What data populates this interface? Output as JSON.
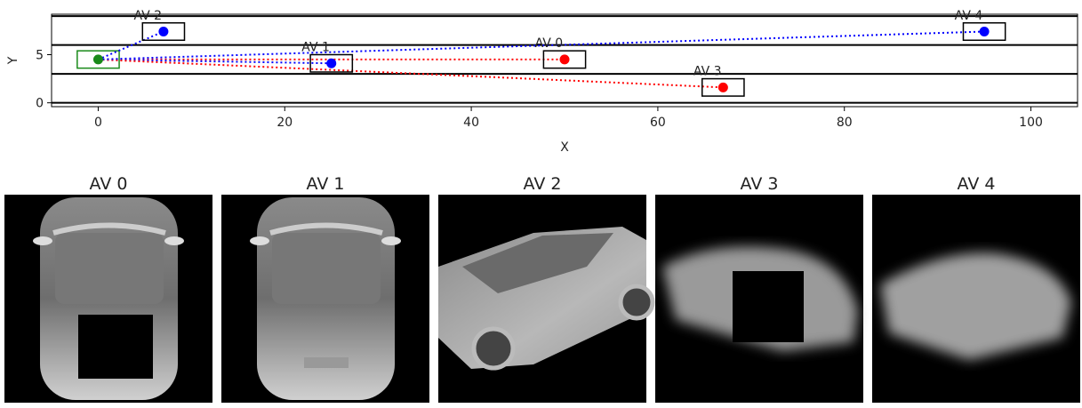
{
  "chart_data": {
    "type": "scatter",
    "xlabel": "X",
    "ylabel": "Y",
    "xlim": [
      -5,
      105
    ],
    "ylim": [
      -0.4,
      9.2
    ],
    "xticks": [
      0,
      20,
      40,
      60,
      80,
      100
    ],
    "yticks": [
      0,
      5
    ],
    "lanes": [
      0,
      3,
      6,
      9
    ],
    "box": [
      4.5,
      1.8
    ],
    "ego": {
      "x": 0,
      "y": 4.5,
      "color": "#1a8a1a"
    },
    "series": [
      {
        "name": "AV 0",
        "x": 50,
        "y": 4.5,
        "color": "#ff0000"
      },
      {
        "name": "AV 1",
        "x": 25,
        "y": 4.1,
        "color": "#0000ff"
      },
      {
        "name": "AV 2",
        "x": 7,
        "y": 7.4,
        "color": "#0000ff"
      },
      {
        "name": "AV 3",
        "x": 67,
        "y": 1.6,
        "color": "#ff0000"
      },
      {
        "name": "AV 4",
        "x": 95,
        "y": 7.4,
        "color": "#0000ff"
      }
    ]
  },
  "panels": [
    "AV 0",
    "AV 1",
    "AV 2",
    "AV 3",
    "AV 4"
  ]
}
